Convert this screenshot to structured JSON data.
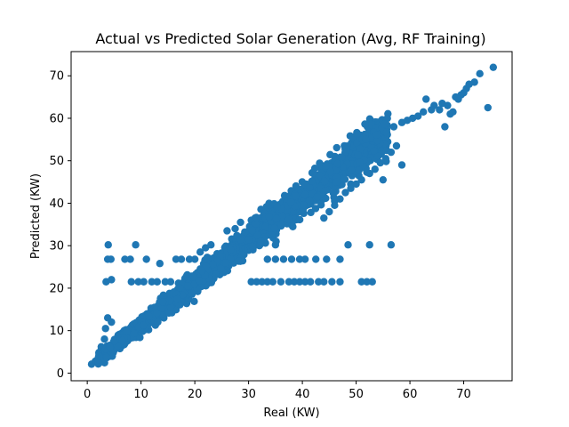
{
  "chart_data": {
    "type": "scatter",
    "title": "Actual vs Predicted Solar Generation (Avg, RF Training)",
    "xlabel": "Real (KW)",
    "ylabel": "Predicted (KW)",
    "xlim": [
      -3,
      79
    ],
    "ylim": [
      -1.8,
      75.7
    ],
    "xticks": [
      0,
      10,
      20,
      30,
      40,
      50,
      60,
      70
    ],
    "yticks": [
      0,
      10,
      20,
      30,
      40,
      50,
      60,
      70
    ],
    "grid": false,
    "marker_color": "#1f77b4",
    "series": [
      {
        "points": [
          [
            0.8,
            2.1
          ],
          [
            1.5,
            2.8
          ],
          [
            2.2,
            3.5
          ],
          [
            2.6,
            6.2
          ],
          [
            3.0,
            4.2
          ],
          [
            3.2,
            8.0
          ],
          [
            3.4,
            10.5
          ],
          [
            3.8,
            13.0
          ],
          [
            4.2,
            5.0
          ],
          [
            4.5,
            12.0
          ],
          [
            3.5,
            21.5
          ],
          [
            4.5,
            22.0
          ],
          [
            3.8,
            26.8
          ],
          [
            4.4,
            26.8
          ],
          [
            3.9,
            30.2
          ],
          [
            7.0,
            26.8
          ],
          [
            8.0,
            26.8
          ],
          [
            8.2,
            21.5
          ],
          [
            9.5,
            21.5
          ],
          [
            10.5,
            21.5
          ],
          [
            11.0,
            26.8
          ],
          [
            9.0,
            30.2
          ],
          [
            12.0,
            21.5
          ],
          [
            13.0,
            21.5
          ],
          [
            13.5,
            25.8
          ],
          [
            14.5,
            21.5
          ],
          [
            15.5,
            21.5
          ],
          [
            16.5,
            26.8
          ],
          [
            17.5,
            26.8
          ],
          [
            18.0,
            21.5
          ],
          [
            19.0,
            26.8
          ],
          [
            19.5,
            21.5
          ],
          [
            20.0,
            26.8
          ],
          [
            20.5,
            21.5
          ],
          [
            21.0,
            28.5
          ],
          [
            22.0,
            29.5
          ],
          [
            23.0,
            30.2
          ],
          [
            24.5,
            25.5
          ],
          [
            26.0,
            33.5
          ],
          [
            27.5,
            34.0
          ],
          [
            28.5,
            35.5
          ],
          [
            29.5,
            33.0
          ],
          [
            30.5,
            36.0
          ],
          [
            31.0,
            34.5
          ],
          [
            32.0,
            30.0
          ],
          [
            33.0,
            30.8
          ],
          [
            34.0,
            33.5
          ],
          [
            35.0,
            30.2
          ],
          [
            30.5,
            21.5
          ],
          [
            31.5,
            21.5
          ],
          [
            32.5,
            21.5
          ],
          [
            33.5,
            21.5
          ],
          [
            34.5,
            21.5
          ],
          [
            36.0,
            21.5
          ],
          [
            37.5,
            21.5
          ],
          [
            38.5,
            21.5
          ],
          [
            39.5,
            21.5
          ],
          [
            40.5,
            21.5
          ],
          [
            41.5,
            21.5
          ],
          [
            43.0,
            21.5
          ],
          [
            44.0,
            21.5
          ],
          [
            45.5,
            21.5
          ],
          [
            47.0,
            21.5
          ],
          [
            51.0,
            21.5
          ],
          [
            52.0,
            21.5
          ],
          [
            53.0,
            21.5
          ],
          [
            33.5,
            26.8
          ],
          [
            35.0,
            26.8
          ],
          [
            36.5,
            26.8
          ],
          [
            38.0,
            26.8
          ],
          [
            39.5,
            26.8
          ],
          [
            40.5,
            26.8
          ],
          [
            42.5,
            26.8
          ],
          [
            44.5,
            26.8
          ],
          [
            47.0,
            26.8
          ],
          [
            48.5,
            30.2
          ],
          [
            52.5,
            30.2
          ],
          [
            56.5,
            30.2
          ],
          [
            46.0,
            40.5
          ],
          [
            47.5,
            46.0
          ],
          [
            49.0,
            44.5
          ],
          [
            50.5,
            46.5
          ],
          [
            52.0,
            49.5
          ],
          [
            54.0,
            52.5
          ],
          [
            55.5,
            56.0
          ],
          [
            57.0,
            58.0
          ],
          [
            58.5,
            59.0
          ],
          [
            59.5,
            59.5
          ],
          [
            60.5,
            60.0
          ],
          [
            61.5,
            60.5
          ],
          [
            62.5,
            61.5
          ],
          [
            63.0,
            64.5
          ],
          [
            64.5,
            63.0
          ],
          [
            65.5,
            62.0
          ],
          [
            66.0,
            63.5
          ],
          [
            67.0,
            63.0
          ],
          [
            67.5,
            61.0
          ],
          [
            66.5,
            58.0
          ],
          [
            68.0,
            61.5
          ],
          [
            68.5,
            65.0
          ],
          [
            69.5,
            65.5
          ],
          [
            70.0,
            66.0
          ],
          [
            70.5,
            67.0
          ],
          [
            71.0,
            68.0
          ],
          [
            72.0,
            68.5
          ],
          [
            73.0,
            70.5
          ],
          [
            75.5,
            72.0
          ],
          [
            74.5,
            62.5
          ],
          [
            69.0,
            64.5
          ],
          [
            64.0,
            62.0
          ],
          [
            40.0,
            41.5
          ],
          [
            41.0,
            43.5
          ],
          [
            42.0,
            44.0
          ],
          [
            43.0,
            46.0
          ],
          [
            44.0,
            47.0
          ],
          [
            45.0,
            46.5
          ],
          [
            46.5,
            48.0
          ],
          [
            48.0,
            49.5
          ],
          [
            49.5,
            50.0
          ],
          [
            50.0,
            51.0
          ],
          [
            51.0,
            52.0
          ],
          [
            52.5,
            51.5
          ],
          [
            53.5,
            53.5
          ],
          [
            44.0,
            36.5
          ],
          [
            45.0,
            38.0
          ],
          [
            46.0,
            39.5
          ],
          [
            47.0,
            41.0
          ],
          [
            48.0,
            42.5
          ],
          [
            49.0,
            43.5
          ],
          [
            50.0,
            44.5
          ],
          [
            51.0,
            45.5
          ],
          [
            52.5,
            47.0
          ],
          [
            53.5,
            48.0
          ],
          [
            54.5,
            49.5
          ],
          [
            55.5,
            50.5
          ],
          [
            56.5,
            52.0
          ],
          [
            57.5,
            53.5
          ],
          [
            55.0,
            45.5
          ],
          [
            58.5,
            49.0
          ]
        ]
      }
    ]
  }
}
